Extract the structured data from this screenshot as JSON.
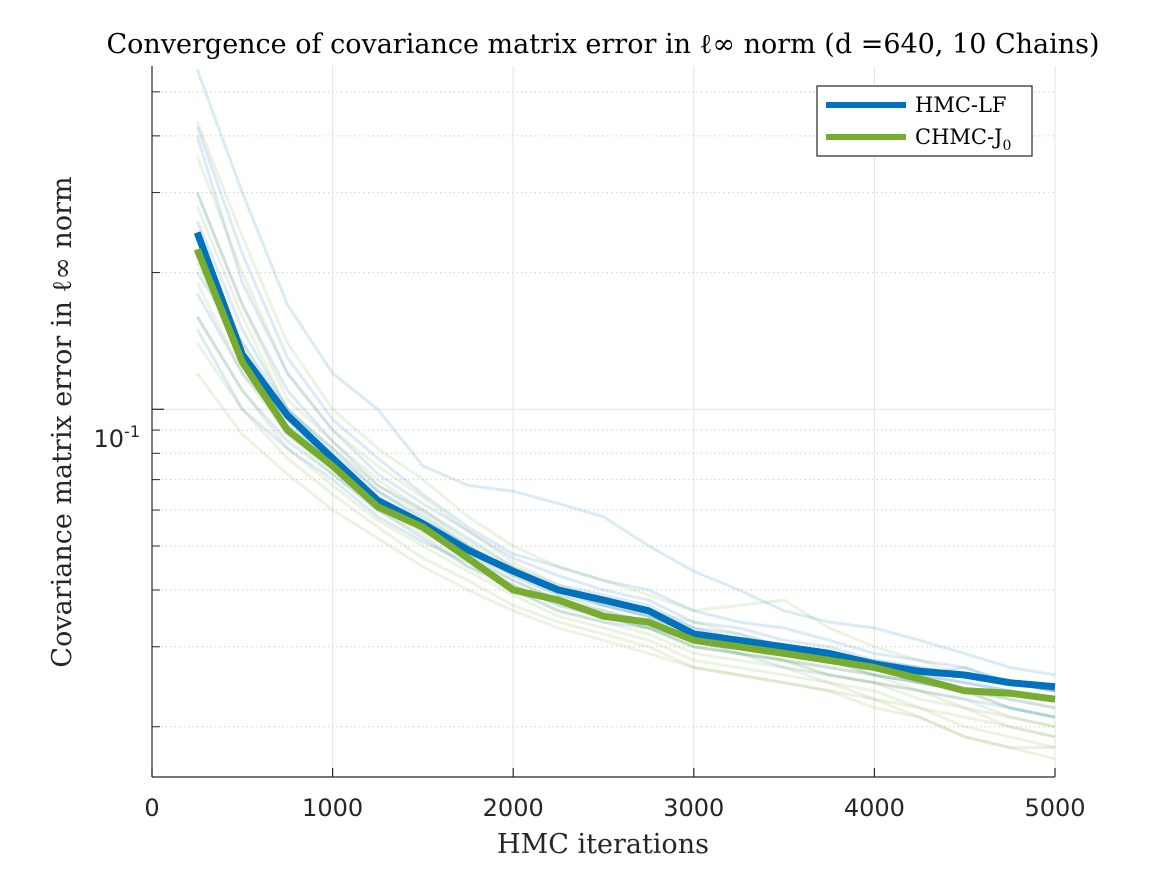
{
  "chart_data": {
    "type": "line",
    "title": "Convergence of covariance matrix error in ℓ∞ norm (d =640, 10 Chains)",
    "xlabel": "HMC iterations",
    "ylabel": "Covariance matrix error in ℓ∞ norm",
    "xlim": [
      0,
      5000
    ],
    "ylim": [
      0.0155,
      0.57
    ],
    "yscale": "log",
    "grid": true,
    "legend_position": "top-right",
    "x_ticks": [
      0,
      1000,
      2000,
      3000,
      4000,
      5000
    ],
    "y_ticks": [
      0.1
    ],
    "x_tick_labels": [
      "0",
      "1000",
      "2000",
      "3000",
      "4000",
      "5000"
    ],
    "y_tick_base": "10",
    "y_tick_exp": "-1",
    "x": [
      250,
      500,
      750,
      1000,
      1250,
      1500,
      1750,
      2000,
      2250,
      2500,
      2750,
      3000,
      3250,
      3500,
      3750,
      4000,
      4250,
      4500,
      4750,
      5000
    ],
    "series": [
      {
        "name": "HMC-LF",
        "color": "#0072BD",
        "values": [
          0.245,
          0.132,
          0.097,
          0.078,
          0.063,
          0.056,
          0.049,
          0.044,
          0.04,
          0.038,
          0.036,
          0.032,
          0.031,
          0.03,
          0.029,
          0.0275,
          0.0265,
          0.026,
          0.025,
          0.0245
        ]
      },
      {
        "name": "CHMC-J0",
        "color": "#77AC30",
        "values": [
          0.225,
          0.127,
          0.09,
          0.075,
          0.061,
          0.055,
          0.047,
          0.04,
          0.038,
          0.035,
          0.034,
          0.031,
          0.03,
          0.029,
          0.028,
          0.027,
          0.0255,
          0.024,
          0.0237,
          0.023
        ]
      }
    ],
    "legend": [
      {
        "base": "HMC-LF",
        "sub": ""
      },
      {
        "base": "CHMC-J",
        "sub": "0"
      }
    ],
    "chains": {
      "HMC-LF": [
        [
          0.56,
          0.3,
          0.17,
          0.12,
          0.1,
          0.075,
          0.068,
          0.066,
          0.062,
          0.058,
          0.05,
          0.044,
          0.04,
          0.036,
          0.034,
          0.033,
          0.031,
          0.029,
          0.027,
          0.026
        ],
        [
          0.42,
          0.22,
          0.13,
          0.095,
          0.078,
          0.065,
          0.055,
          0.048,
          0.045,
          0.042,
          0.04,
          0.036,
          0.034,
          0.033,
          0.031,
          0.029,
          0.028,
          0.027,
          0.025,
          0.024
        ],
        [
          0.3,
          0.17,
          0.11,
          0.085,
          0.068,
          0.06,
          0.052,
          0.045,
          0.041,
          0.039,
          0.037,
          0.033,
          0.032,
          0.03,
          0.029,
          0.028,
          0.027,
          0.026,
          0.025,
          0.024
        ],
        [
          0.2,
          0.14,
          0.1,
          0.082,
          0.066,
          0.057,
          0.05,
          0.044,
          0.04,
          0.037,
          0.035,
          0.032,
          0.03,
          0.029,
          0.028,
          0.027,
          0.026,
          0.025,
          0.024,
          0.023
        ],
        [
          0.18,
          0.12,
          0.092,
          0.078,
          0.063,
          0.055,
          0.047,
          0.042,
          0.038,
          0.036,
          0.034,
          0.031,
          0.03,
          0.029,
          0.028,
          0.026,
          0.025,
          0.024,
          0.023,
          0.022
        ],
        [
          0.16,
          0.11,
          0.085,
          0.072,
          0.06,
          0.052,
          0.045,
          0.041,
          0.037,
          0.035,
          0.033,
          0.03,
          0.029,
          0.028,
          0.027,
          0.026,
          0.025,
          0.024,
          0.022,
          0.021
        ],
        [
          0.15,
          0.1,
          0.082,
          0.07,
          0.058,
          0.051,
          0.046,
          0.04,
          0.036,
          0.034,
          0.033,
          0.031,
          0.029,
          0.027,
          0.026,
          0.025,
          0.024,
          0.023,
          0.022,
          0.021
        ],
        [
          0.4,
          0.19,
          0.12,
          0.09,
          0.072,
          0.062,
          0.054,
          0.047,
          0.043,
          0.04,
          0.038,
          0.034,
          0.033,
          0.031,
          0.03,
          0.028,
          0.027,
          0.026,
          0.025,
          0.024
        ],
        [
          0.26,
          0.15,
          0.1,
          0.08,
          0.066,
          0.058,
          0.05,
          0.044,
          0.04,
          0.038,
          0.036,
          0.033,
          0.031,
          0.03,
          0.029,
          0.027,
          0.026,
          0.027,
          0.025,
          0.024
        ],
        [
          0.22,
          0.13,
          0.095,
          0.076,
          0.062,
          0.054,
          0.048,
          0.043,
          0.039,
          0.037,
          0.035,
          0.032,
          0.03,
          0.029,
          0.028,
          0.027,
          0.026,
          0.025,
          0.024,
          0.023
        ]
      ],
      "CHMC-J0": [
        [
          0.43,
          0.24,
          0.14,
          0.1,
          0.082,
          0.07,
          0.058,
          0.05,
          0.045,
          0.042,
          0.039,
          0.036,
          0.037,
          0.038,
          0.033,
          0.03,
          0.028,
          0.026,
          0.025,
          0.024
        ],
        [
          0.36,
          0.2,
          0.12,
          0.09,
          0.075,
          0.064,
          0.054,
          0.046,
          0.041,
          0.038,
          0.036,
          0.034,
          0.032,
          0.03,
          0.028,
          0.027,
          0.025,
          0.024,
          0.022,
          0.021
        ],
        [
          0.28,
          0.16,
          0.1,
          0.082,
          0.068,
          0.059,
          0.05,
          0.043,
          0.039,
          0.036,
          0.034,
          0.031,
          0.03,
          0.028,
          0.027,
          0.026,
          0.024,
          0.023,
          0.021,
          0.02
        ],
        [
          0.24,
          0.14,
          0.095,
          0.078,
          0.064,
          0.056,
          0.048,
          0.042,
          0.038,
          0.035,
          0.033,
          0.03,
          0.029,
          0.028,
          0.026,
          0.025,
          0.023,
          0.022,
          0.02,
          0.019
        ],
        [
          0.19,
          0.12,
          0.088,
          0.072,
          0.06,
          0.053,
          0.045,
          0.04,
          0.036,
          0.034,
          0.032,
          0.029,
          0.028,
          0.027,
          0.025,
          0.024,
          0.022,
          0.021,
          0.02,
          0.019
        ],
        [
          0.16,
          0.11,
          0.082,
          0.068,
          0.057,
          0.05,
          0.044,
          0.039,
          0.035,
          0.033,
          0.031,
          0.028,
          0.027,
          0.026,
          0.025,
          0.023,
          0.022,
          0.02,
          0.019,
          0.018
        ],
        [
          0.14,
          0.1,
          0.078,
          0.065,
          0.055,
          0.047,
          0.042,
          0.037,
          0.034,
          0.032,
          0.03,
          0.027,
          0.026,
          0.025,
          0.024,
          0.023,
          0.021,
          0.019,
          0.018,
          0.018
        ],
        [
          0.12,
          0.088,
          0.072,
          0.06,
          0.052,
          0.045,
          0.04,
          0.036,
          0.033,
          0.031,
          0.029,
          0.027,
          0.026,
          0.025,
          0.024,
          0.022,
          0.021,
          0.019,
          0.018,
          0.017
        ],
        [
          0.3,
          0.17,
          0.105,
          0.085,
          0.07,
          0.06,
          0.051,
          0.045,
          0.04,
          0.037,
          0.035,
          0.032,
          0.031,
          0.029,
          0.028,
          0.026,
          0.025,
          0.024,
          0.023,
          0.022
        ],
        [
          0.21,
          0.13,
          0.092,
          0.075,
          0.062,
          0.054,
          0.047,
          0.041,
          0.037,
          0.035,
          0.033,
          0.03,
          0.029,
          0.028,
          0.026,
          0.025,
          0.024,
          0.022,
          0.021,
          0.02
        ]
      ]
    }
  }
}
